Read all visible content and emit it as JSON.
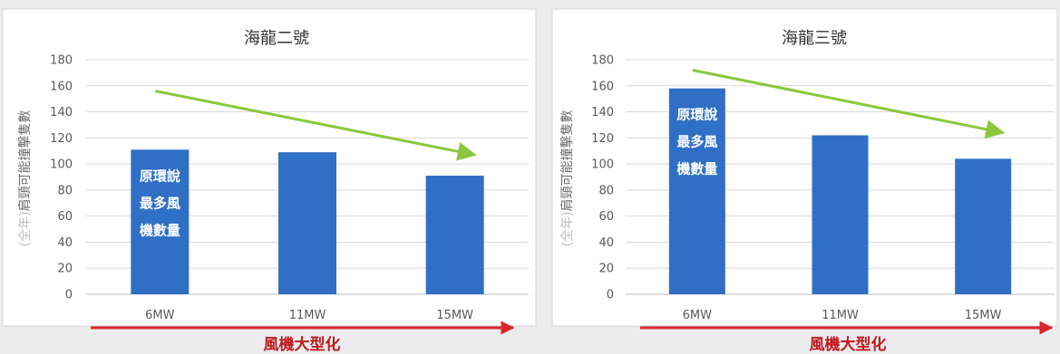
{
  "chart_data": [
    {
      "type": "bar",
      "title": "海龍二號",
      "categories": [
        "6MW",
        "11MW",
        "15MW"
      ],
      "values": [
        111,
        109,
        91
      ],
      "ylabel_prefix": "(全年)",
      "ylabel_main": "肩頸可能撞擊隻數",
      "xfooter": "風機大型化",
      "ylim": [
        0,
        180
      ],
      "yticks": [
        0,
        20,
        40,
        60,
        80,
        100,
        120,
        140,
        160,
        180
      ],
      "grid": true,
      "trend_arrow": {
        "from": [
          0,
          156
        ],
        "to": [
          2,
          107
        ]
      },
      "bar_note": {
        "category": "6MW",
        "lines": [
          "原環說",
          "最多風",
          "機數量"
        ]
      }
    },
    {
      "type": "bar",
      "title": "海龍三號",
      "categories": [
        "6MW",
        "11MW",
        "15MW"
      ],
      "values": [
        158,
        122,
        104
      ],
      "ylabel_prefix": "(全年)",
      "ylabel_main": "肩頸可能撞擊隻數",
      "xfooter": "風機大型化",
      "ylim": [
        0,
        180
      ],
      "yticks": [
        0,
        20,
        40,
        60,
        80,
        100,
        120,
        140,
        160,
        180
      ],
      "grid": true,
      "trend_arrow": {
        "from": [
          0,
          172
        ],
        "to": [
          2,
          124
        ]
      },
      "bar_note": {
        "category": "6MW",
        "lines": [
          "原環說",
          "最多風",
          "機數量"
        ]
      }
    }
  ],
  "colors": {
    "bar": "#2f6fc6",
    "trend": "#8cc63f",
    "footer_arrow": "#d9262b",
    "grid": "#d9d9d9"
  }
}
